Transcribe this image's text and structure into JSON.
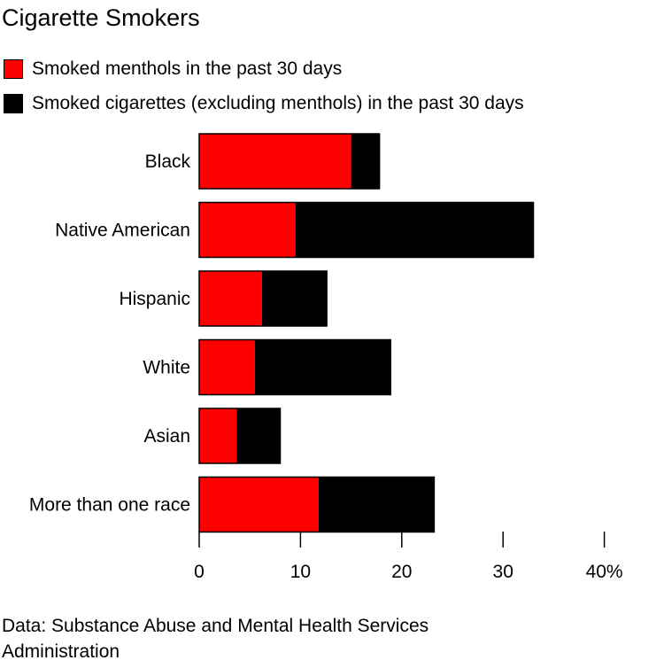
{
  "title": "Cigarette Smokers",
  "source": "Data: Substance Abuse and Mental Health Services Administration",
  "colors": {
    "menthol": "#ff0000",
    "other": "#000000"
  },
  "chart_data": {
    "type": "bar",
    "orientation": "horizontal",
    "stacked": true,
    "title": "Cigarette Smokers",
    "categories": [
      "Black",
      "Native American",
      "Hispanic",
      "White",
      "Asian",
      "More than one race"
    ],
    "series": [
      {
        "name": "Smoked menthols in the past 30 days",
        "values": [
          15.0,
          9.5,
          6.2,
          5.5,
          3.7,
          11.8
        ]
      },
      {
        "name": "Smoked cigarettes (excluding menthols) in the past 30 days",
        "values": [
          2.8,
          23.5,
          6.4,
          13.4,
          4.3,
          11.4
        ]
      }
    ],
    "xlim": [
      0,
      40
    ],
    "xticks": [
      0,
      10,
      20,
      30,
      40
    ],
    "xtick_labels": [
      "0",
      "10",
      "20",
      "30",
      "40%"
    ],
    "grid": false,
    "legend_position": "top-left"
  }
}
